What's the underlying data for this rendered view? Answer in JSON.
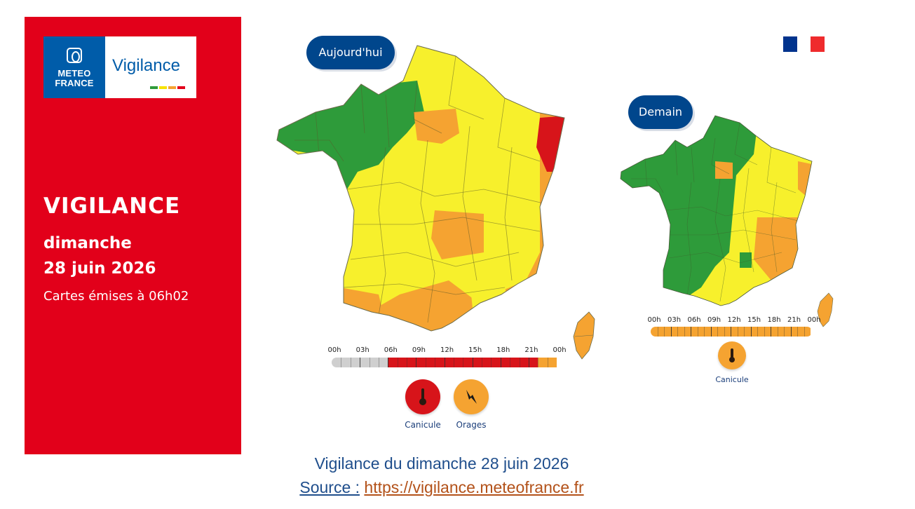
{
  "colors": {
    "panel_red": "#e2001a",
    "brand_blue": "#005ca9",
    "green": "#2e9b3a",
    "yellow": "#f7f02c",
    "orange": "#f5a331",
    "red": "#d7141a",
    "grey": "#cfcfcf"
  },
  "logo": {
    "meteo_france": "METEO\nFRANCE",
    "vigilance": "Vigilance"
  },
  "left": {
    "title": "VIGILANCE",
    "day": "dimanche",
    "date": "28 juin 2026",
    "issued": "Cartes émises à 06h02"
  },
  "today": {
    "label": "Aujourd'hui",
    "timeline": {
      "hours": [
        "00h",
        "03h",
        "06h",
        "09h",
        "12h",
        "15h",
        "18h",
        "21h",
        "00h"
      ],
      "segments": [
        {
          "from": 0,
          "to": 6,
          "level": "grey"
        },
        {
          "from": 6,
          "to": 22,
          "level": "red"
        },
        {
          "from": 22,
          "to": 24,
          "level": "orange"
        }
      ]
    },
    "hazards": [
      {
        "name": "Canicule",
        "level": "red",
        "icon": "thermometer-icon"
      },
      {
        "name": "Orages",
        "level": "orange",
        "icon": "lightning-icon"
      }
    ]
  },
  "tomorrow": {
    "label": "Demain",
    "timeline": {
      "hours": [
        "00h",
        "03h",
        "06h",
        "09h",
        "12h",
        "15h",
        "18h",
        "21h",
        "00h"
      ],
      "segments": [
        {
          "from": 0,
          "to": 24,
          "level": "orange"
        }
      ]
    },
    "hazards": [
      {
        "name": "Canicule",
        "level": "orange",
        "icon": "thermometer-icon"
      }
    ]
  },
  "caption": "Vigilance du dimanche 28 juin 2026",
  "source": {
    "label": "Source :",
    "url": "https://vigilance.meteofrance.fr"
  }
}
